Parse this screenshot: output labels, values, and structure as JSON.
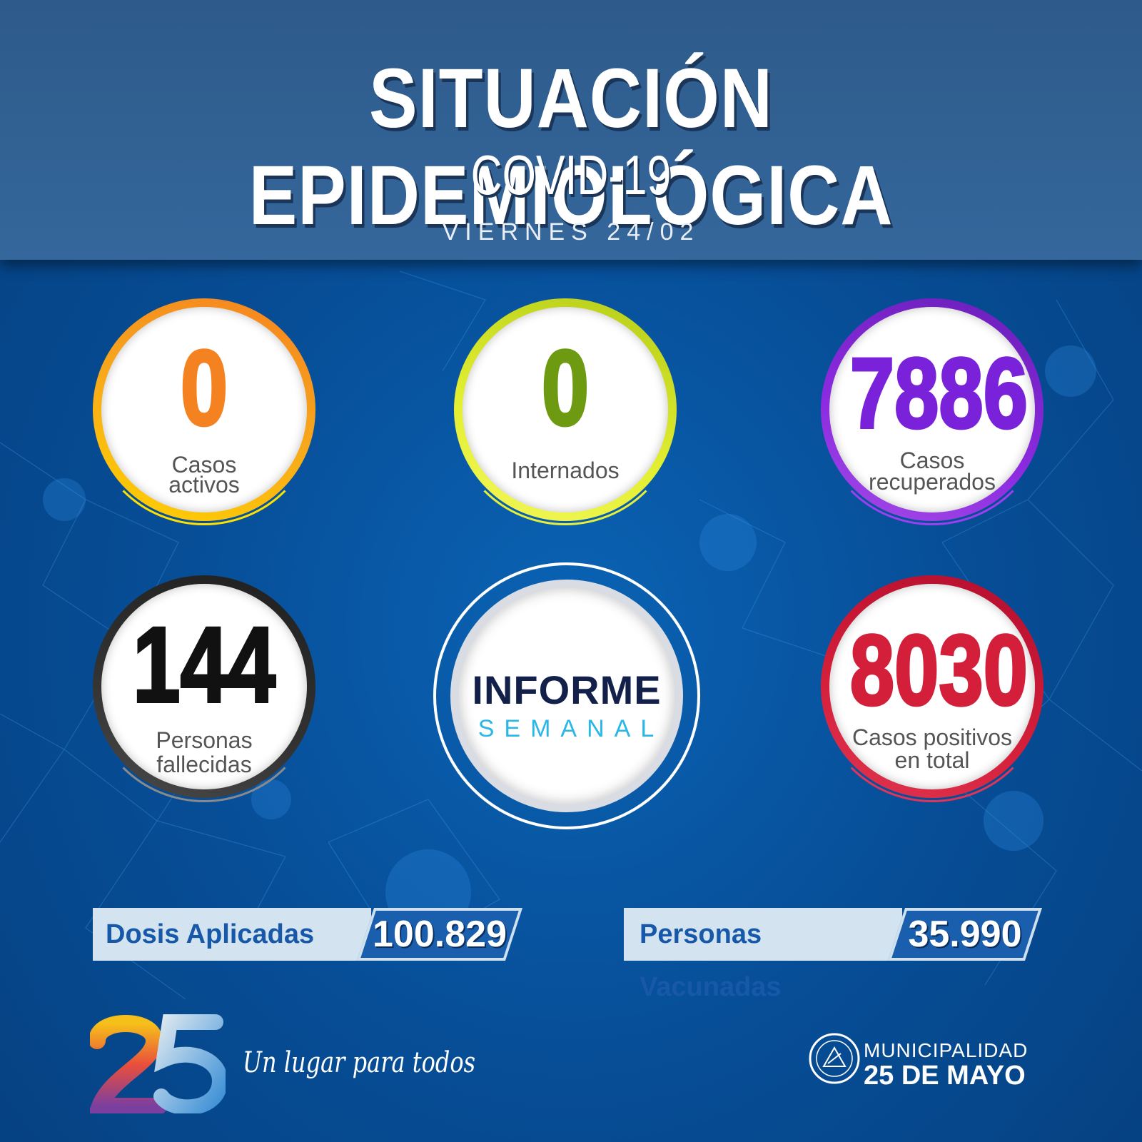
{
  "header": {
    "title": "SITUACIÓN EPIDEMIOLÓGICA",
    "subtitle": "COVID-19",
    "date": "VIERNES 24/02"
  },
  "stats": {
    "active": {
      "value": "0",
      "label_line1": "Casos",
      "label_line2": "activos",
      "color": "#f58220"
    },
    "hospitalized": {
      "value": "0",
      "label": "Internados",
      "color": "#6e9a12"
    },
    "recovered": {
      "value": "7886",
      "label_line1": "Casos",
      "label_line2": "recuperados",
      "color": "#7a22d9"
    },
    "deceased": {
      "value": "144",
      "label_line1": "Personas",
      "label_line2": "fallecidas",
      "color": "#111111"
    },
    "total_positive": {
      "value": "8030",
      "label_line1": "Casos positivos",
      "label_line2": "en total",
      "color": "#d41f3a"
    }
  },
  "center_badge": {
    "line1": "INFORME",
    "line2": "SEMANAL"
  },
  "vaccination": {
    "doses_label": "Dosis Aplicadas",
    "doses_value": "100.829",
    "people_label": "Personas Vacunadas",
    "people_value": "35.990"
  },
  "footer": {
    "slogan": "Un lugar para todos",
    "muni_line1": "MUNICIPALIDAD",
    "muni_line2": "25 DE MAYO"
  }
}
